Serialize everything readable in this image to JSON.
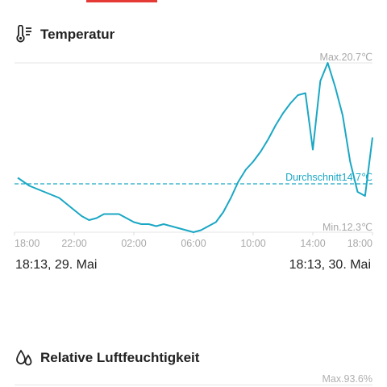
{
  "temperature": {
    "title": "Temperatur",
    "icon": "thermometer-icon",
    "max_label": "Max.20.7℃",
    "min_label": "Min.12.3℃",
    "avg_label": "Durchschnitt14.7℃",
    "range_start": "18:13, 29. Mai",
    "range_end": "18:13, 30. Mai"
  },
  "humidity": {
    "title": "Relative Luftfeuchtigkeit",
    "icon": "water-drops-icon",
    "max_label": "Max.93.6%"
  },
  "colors": {
    "line": "#1aa7c4",
    "accent": "#e53935",
    "axis_text": "#a8a8a8",
    "grid": "#dcdcdc"
  },
  "chart_data": {
    "type": "line",
    "x_ticks": [
      "18:00",
      "22:00",
      "02:00",
      "06:00",
      "10:00",
      "14:00",
      "18:00"
    ],
    "ylim": [
      12.3,
      20.7
    ],
    "max": 20.7,
    "min": 12.3,
    "average": 14.7,
    "series": [
      {
        "x": [
          "18:13",
          "19:00",
          "20:00",
          "21:00",
          "22:00",
          "22:30",
          "23:00",
          "23:30",
          "00:00",
          "00:30",
          "01:00",
          "01:30",
          "02:00",
          "02:30",
          "03:00",
          "03:30",
          "04:00",
          "04:30",
          "05:00",
          "05:30",
          "06:00",
          "06:30",
          "07:00",
          "07:30",
          "08:00",
          "08:30",
          "09:00",
          "09:30",
          "10:00",
          "10:30",
          "11:00",
          "11:30",
          "12:00",
          "12:30",
          "13:00",
          "13:30",
          "14:00",
          "14:30",
          "15:00",
          "15:30",
          "16:00",
          "16:30",
          "17:00",
          "17:30",
          "18:13"
        ],
        "y": [
          15.0,
          14.6,
          14.3,
          14.0,
          13.4,
          13.1,
          12.9,
          13.0,
          13.2,
          13.2,
          13.2,
          13.0,
          12.8,
          12.7,
          12.7,
          12.6,
          12.7,
          12.6,
          12.5,
          12.4,
          12.3,
          12.4,
          12.6,
          12.8,
          13.3,
          14.0,
          14.8,
          15.4,
          15.8,
          16.3,
          16.9,
          17.6,
          18.2,
          18.7,
          19.1,
          19.2,
          16.4,
          19.8,
          20.7,
          19.5,
          18.1,
          15.8,
          14.3,
          14.1,
          17.0
        ]
      }
    ]
  }
}
